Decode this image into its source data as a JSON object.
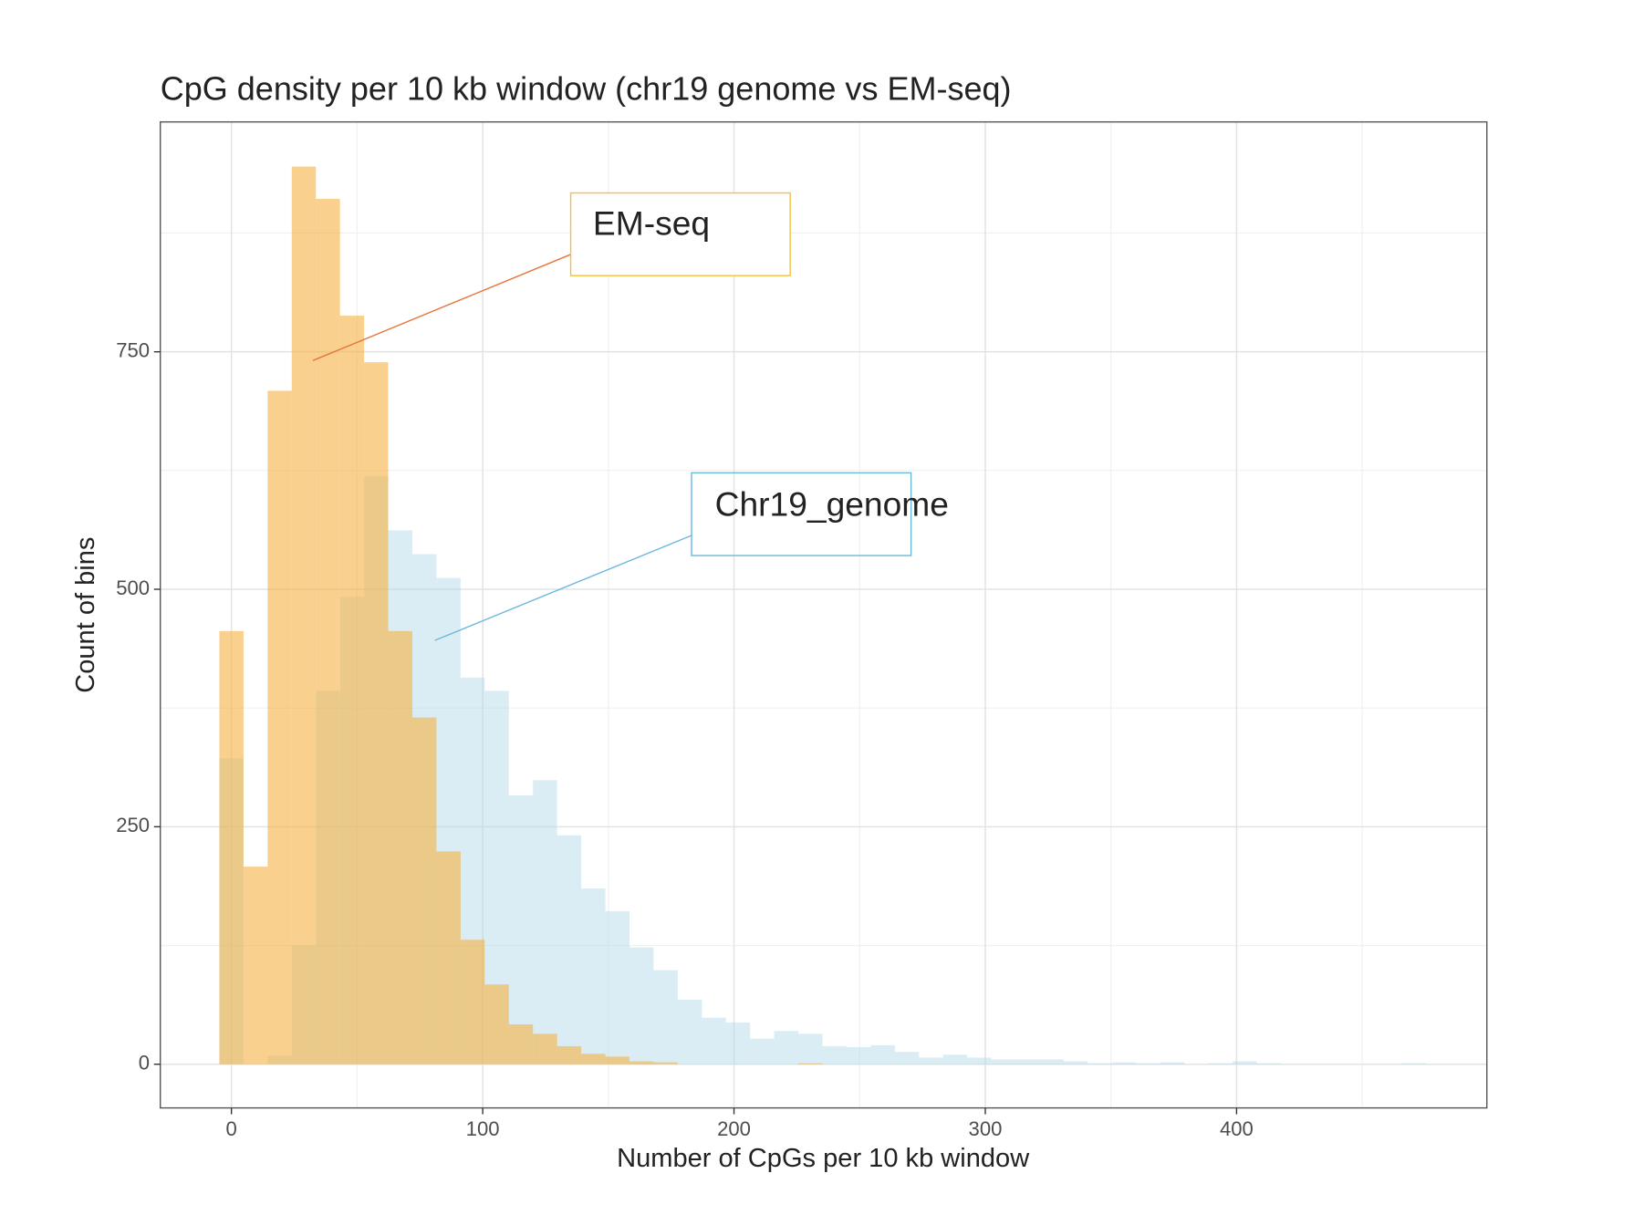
{
  "chart_data": {
    "type": "histogram",
    "title": "CpG density per 10 kb window (chr19 genome vs EM-seq)",
    "x_label": "Number of CpGs per 10 kb window",
    "y_label": "Count of bins",
    "bins": [
      -4.8,
      4.8,
      14.4,
      24,
      33.6,
      43.2,
      52.8,
      62.4,
      72,
      81.6,
      91.2,
      100.8,
      110.4,
      120,
      129.6,
      139.2,
      148.8,
      158.4,
      168,
      177.6,
      187.2,
      196.8,
      206.4,
      216,
      225.6,
      235.2,
      244.8,
      254.4,
      264,
      273.6,
      283.2,
      292.8,
      302.4,
      312,
      321.6,
      331.2,
      340.8,
      350.4,
      360,
      369.6,
      379.2,
      388.8,
      398.4,
      408,
      417.6,
      427.2,
      436.8,
      446.4,
      456,
      465.6,
      475.2
    ],
    "series": [
      {
        "name": "Chr19_genome",
        "color": "#add8e6",
        "values": [
          322,
          0,
          9,
          125,
          393,
          492,
          619,
          562,
          537,
          512,
          407,
          393,
          283,
          299,
          241,
          185,
          161,
          123,
          99,
          68,
          49,
          44,
          27,
          35,
          32,
          19,
          18,
          20,
          13,
          7,
          10,
          7,
          5,
          5,
          5,
          3,
          1,
          2,
          1,
          2,
          0,
          1,
          3,
          1,
          0,
          0,
          0,
          0,
          0,
          1
        ]
      },
      {
        "name": "EM-seq",
        "color": "#f5b041",
        "values": [
          456,
          208,
          709,
          945,
          911,
          788,
          739,
          456,
          365,
          224,
          131,
          84,
          42,
          32,
          19,
          11,
          8,
          3,
          2,
          0,
          0,
          0,
          0,
          0,
          1,
          0,
          0,
          0,
          0,
          0,
          0,
          0,
          0,
          0,
          0,
          0,
          0,
          0,
          0,
          0,
          0,
          0,
          0,
          0,
          0,
          0,
          0,
          0,
          0,
          0
        ]
      }
    ],
    "xlim": [
      -28.3,
      499.6
    ],
    "xticks": [
      0,
      100,
      200,
      300,
      400
    ],
    "ylim": [
      -46,
      992
    ],
    "yticks": [
      0,
      250,
      500,
      750
    ],
    "x_minor_grid": [
      50,
      150,
      250,
      350,
      450
    ],
    "y_minor_grid": [
      125,
      375,
      625,
      875
    ],
    "grid": true
  }
}
